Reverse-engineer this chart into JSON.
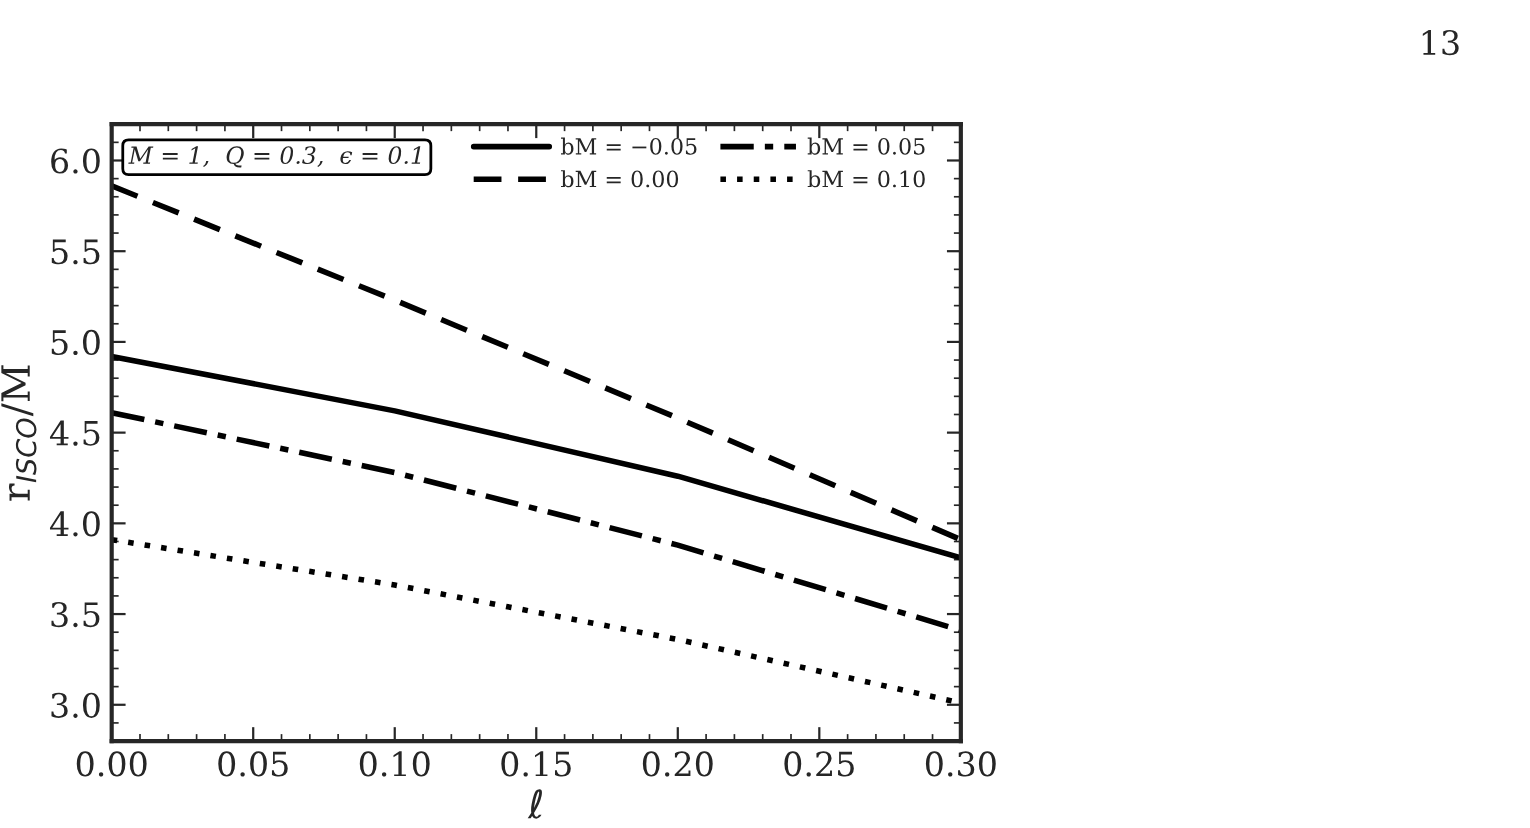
{
  "chart_data": {
    "type": "line",
    "xlabel": "ℓ",
    "ylabel": "r$_{ISCO}$/M",
    "annotations": [
      "M = 1,  Q = 0.3,  ϵ = 0.1",
      "13"
    ],
    "x": [
      0.0,
      0.1,
      0.2,
      0.3
    ],
    "series": [
      {
        "name": "bM = −0.05",
        "color": "#000000",
        "line_style": "solid",
        "values": [
          4.92,
          4.62,
          4.26,
          3.81
        ]
      },
      {
        "name": "bM = 0.00",
        "color": "#000000",
        "line_style": "dashed",
        "values": [
          5.86,
          5.23,
          4.58,
          3.91
        ]
      },
      {
        "name": "bM = 0.05",
        "color": "#000000",
        "line_style": "dashdot",
        "values": [
          4.61,
          4.28,
          3.88,
          3.41
        ]
      },
      {
        "name": "bM = 0.10",
        "color": "#000000",
        "line_style": "dotted",
        "values": [
          3.91,
          3.66,
          3.36,
          3.01
        ]
      }
    ],
    "xlim": [
      0.0,
      0.3
    ],
    "xticks": [
      {
        "value": 0.0,
        "label": "0.00"
      },
      {
        "value": 0.05,
        "label": "0.05"
      },
      {
        "value": 0.1,
        "label": "0.10"
      },
      {
        "value": 0.15,
        "label": "0.15"
      },
      {
        "value": 0.2,
        "label": "0.20"
      },
      {
        "value": 0.25,
        "label": "0.25"
      },
      {
        "value": 0.3,
        "label": "0.30"
      }
    ],
    "ylim": [
      2.8,
      6.2
    ],
    "yticks": [
      {
        "value": 3.0,
        "label": "3.0"
      },
      {
        "value": 3.5,
        "label": "3.5"
      },
      {
        "value": 4.0,
        "label": "4.0"
      },
      {
        "value": 4.5,
        "label": "4.5"
      },
      {
        "value": 5.0,
        "label": "5.0"
      },
      {
        "value": 5.5,
        "label": "5.5"
      },
      {
        "value": 6.0,
        "label": "6.0"
      }
    ],
    "grid": false,
    "legend": "top right",
    "marker": "none"
  }
}
